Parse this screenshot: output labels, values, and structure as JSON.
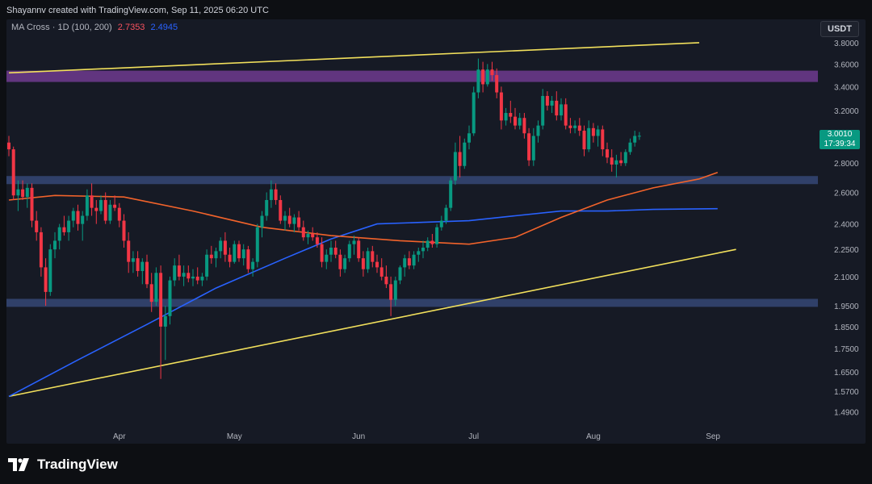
{
  "header": {
    "attribution": "Shayannv created with TradingView.com, Sep 11, 2025 06:20 UTC"
  },
  "indicator": {
    "label": "MA Cross · 1D (100, 200)",
    "ma100_value": "2.7353",
    "ma200_value": "2.4945"
  },
  "currency": "USDT",
  "last_price": {
    "value": "3.0010",
    "countdown": "17:39:34"
  },
  "brand": {
    "name": "TradingView"
  },
  "colors": {
    "background": "#161a25",
    "up": "#089981",
    "down": "#f23645",
    "ma100": "#f2632b",
    "ma200": "#2962ff",
    "trendline": "#f2e05c",
    "supply_zone": "#7b3f9e",
    "demand_zone": "#3a4d80"
  },
  "chart_data": {
    "type": "candlestick",
    "log_scale": true,
    "title": "",
    "xlabel": "",
    "ylabel": "",
    "ylim": [
      1.45,
      3.95
    ],
    "x_ticks": [
      "Apr",
      "May",
      "Jun",
      "Jul",
      "Aug",
      "Sep"
    ],
    "y_ticks": [
      "3.8000",
      "3.6000",
      "3.4000",
      "3.2000",
      "3.0000",
      "2.8000",
      "2.6000",
      "2.4000",
      "2.2500",
      "2.1000",
      "1.9500",
      "1.8500",
      "1.7500",
      "1.6500",
      "1.5700",
      "1.4900"
    ],
    "ohlc": [
      [
        2.95,
        3.0,
        2.85,
        2.9
      ],
      [
        2.9,
        2.92,
        2.55,
        2.58
      ],
      [
        2.58,
        2.68,
        2.48,
        2.62
      ],
      [
        2.62,
        2.68,
        2.55,
        2.57
      ],
      [
        2.57,
        2.66,
        2.5,
        2.63
      ],
      [
        2.63,
        2.66,
        2.38,
        2.42
      ],
      [
        2.42,
        2.48,
        2.3,
        2.35
      ],
      [
        2.35,
        2.38,
        2.1,
        2.15
      ],
      [
        2.15,
        2.2,
        1.95,
        2.02
      ],
      [
        2.02,
        2.28,
        2.0,
        2.25
      ],
      [
        2.25,
        2.35,
        2.2,
        2.3
      ],
      [
        2.3,
        2.4,
        2.25,
        2.38
      ],
      [
        2.38,
        2.45,
        2.33,
        2.35
      ],
      [
        2.35,
        2.45,
        2.3,
        2.42
      ],
      [
        2.42,
        2.5,
        2.38,
        2.48
      ],
      [
        2.48,
        2.52,
        2.36,
        2.4
      ],
      [
        2.4,
        2.48,
        2.3,
        2.45
      ],
      [
        2.45,
        2.62,
        2.42,
        2.58
      ],
      [
        2.58,
        2.66,
        2.45,
        2.5
      ],
      [
        2.5,
        2.55,
        2.4,
        2.48
      ],
      [
        2.48,
        2.58,
        2.46,
        2.55
      ],
      [
        2.55,
        2.6,
        2.4,
        2.42
      ],
      [
        2.42,
        2.55,
        2.4,
        2.52
      ],
      [
        2.52,
        2.58,
        2.48,
        2.5
      ],
      [
        2.5,
        2.53,
        2.38,
        2.42
      ],
      [
        2.42,
        2.46,
        2.26,
        2.3
      ],
      [
        2.3,
        2.35,
        2.12,
        2.18
      ],
      [
        2.18,
        2.24,
        2.12,
        2.2
      ],
      [
        2.2,
        2.24,
        2.1,
        2.13
      ],
      [
        2.13,
        2.2,
        2.06,
        2.18
      ],
      [
        2.18,
        2.22,
        2.04,
        2.06
      ],
      [
        2.06,
        2.12,
        1.92,
        1.97
      ],
      [
        1.97,
        2.15,
        1.95,
        2.12
      ],
      [
        2.12,
        2.16,
        1.62,
        1.85
      ],
      [
        1.85,
        1.95,
        1.7,
        1.9
      ],
      [
        1.9,
        2.1,
        1.86,
        2.08
      ],
      [
        2.08,
        2.2,
        2.05,
        2.16
      ],
      [
        2.16,
        2.22,
        2.08,
        2.1
      ],
      [
        2.1,
        2.16,
        2.05,
        2.12
      ],
      [
        2.12,
        2.16,
        2.07,
        2.09
      ],
      [
        2.09,
        2.14,
        2.05,
        2.1
      ],
      [
        2.1,
        2.15,
        2.06,
        2.08
      ],
      [
        2.08,
        2.12,
        2.05,
        2.1
      ],
      [
        2.1,
        2.25,
        2.08,
        2.22
      ],
      [
        2.22,
        2.27,
        2.17,
        2.2
      ],
      [
        2.2,
        2.26,
        2.15,
        2.24
      ],
      [
        2.24,
        2.32,
        2.2,
        2.3
      ],
      [
        2.3,
        2.35,
        2.18,
        2.22
      ],
      [
        2.22,
        2.26,
        2.15,
        2.18
      ],
      [
        2.18,
        2.3,
        2.17,
        2.28
      ],
      [
        2.28,
        2.3,
        2.18,
        2.2
      ],
      [
        2.2,
        2.28,
        2.16,
        2.25
      ],
      [
        2.25,
        2.27,
        2.12,
        2.14
      ],
      [
        2.14,
        2.2,
        2.1,
        2.18
      ],
      [
        2.18,
        2.4,
        2.15,
        2.38
      ],
      [
        2.38,
        2.48,
        2.32,
        2.45
      ],
      [
        2.45,
        2.6,
        2.42,
        2.55
      ],
      [
        2.55,
        2.68,
        2.5,
        2.62
      ],
      [
        2.62,
        2.66,
        2.52,
        2.55
      ],
      [
        2.55,
        2.58,
        2.4,
        2.42
      ],
      [
        2.42,
        2.48,
        2.36,
        2.45
      ],
      [
        2.45,
        2.5,
        2.38,
        2.4
      ],
      [
        2.4,
        2.46,
        2.35,
        2.44
      ],
      [
        2.44,
        2.48,
        2.36,
        2.38
      ],
      [
        2.38,
        2.42,
        2.3,
        2.32
      ],
      [
        2.32,
        2.36,
        2.28,
        2.34
      ],
      [
        2.34,
        2.38,
        2.3,
        2.32
      ],
      [
        2.32,
        2.35,
        2.26,
        2.28
      ],
      [
        2.28,
        2.32,
        2.15,
        2.18
      ],
      [
        2.18,
        2.25,
        2.14,
        2.22
      ],
      [
        2.22,
        2.3,
        2.18,
        2.26
      ],
      [
        2.26,
        2.3,
        2.2,
        2.22
      ],
      [
        2.22,
        2.25,
        2.1,
        2.14
      ],
      [
        2.14,
        2.22,
        2.12,
        2.2
      ],
      [
        2.2,
        2.3,
        2.18,
        2.28
      ],
      [
        2.28,
        2.33,
        2.22,
        2.3
      ],
      [
        2.3,
        2.32,
        2.18,
        2.2
      ],
      [
        2.2,
        2.24,
        2.1,
        2.14
      ],
      [
        2.14,
        2.26,
        2.12,
        2.24
      ],
      [
        2.24,
        2.27,
        2.15,
        2.18
      ],
      [
        2.18,
        2.22,
        2.12,
        2.15
      ],
      [
        2.15,
        2.2,
        2.08,
        2.1
      ],
      [
        2.1,
        2.16,
        2.04,
        2.06
      ],
      [
        2.06,
        2.1,
        1.9,
        1.98
      ],
      [
        1.98,
        2.1,
        1.95,
        2.08
      ],
      [
        2.08,
        2.16,
        2.06,
        2.15
      ],
      [
        2.15,
        2.22,
        2.1,
        2.2
      ],
      [
        2.2,
        2.24,
        2.14,
        2.16
      ],
      [
        2.16,
        2.24,
        2.14,
        2.22
      ],
      [
        2.22,
        2.26,
        2.18,
        2.24
      ],
      [
        2.24,
        2.3,
        2.2,
        2.26
      ],
      [
        2.26,
        2.32,
        2.24,
        2.3
      ],
      [
        2.3,
        2.34,
        2.26,
        2.28
      ],
      [
        2.28,
        2.4,
        2.26,
        2.38
      ],
      [
        2.38,
        2.45,
        2.36,
        2.42
      ],
      [
        2.42,
        2.52,
        2.4,
        2.5
      ],
      [
        2.5,
        2.7,
        2.48,
        2.68
      ],
      [
        2.68,
        2.95,
        2.65,
        2.88
      ],
      [
        2.88,
        3.0,
        2.7,
        2.78
      ],
      [
        2.78,
        2.98,
        2.76,
        2.95
      ],
      [
        2.95,
        3.08,
        2.9,
        3.02
      ],
      [
        3.02,
        3.4,
        3.0,
        3.35
      ],
      [
        3.35,
        3.65,
        3.3,
        3.55
      ],
      [
        3.55,
        3.62,
        3.35,
        3.42
      ],
      [
        3.42,
        3.6,
        3.4,
        3.55
      ],
      [
        3.55,
        3.62,
        3.45,
        3.5
      ],
      [
        3.5,
        3.56,
        3.3,
        3.35
      ],
      [
        3.35,
        3.4,
        3.05,
        3.12
      ],
      [
        3.12,
        3.22,
        3.08,
        3.18
      ],
      [
        3.18,
        3.28,
        3.1,
        3.15
      ],
      [
        3.15,
        3.22,
        3.05,
        3.08
      ],
      [
        3.08,
        3.18,
        3.05,
        3.14
      ],
      [
        3.14,
        3.18,
        2.98,
        3.02
      ],
      [
        3.02,
        3.06,
        2.78,
        2.82
      ],
      [
        2.82,
        3.06,
        2.78,
        3.0
      ],
      [
        3.0,
        3.12,
        2.95,
        3.08
      ],
      [
        3.08,
        3.38,
        3.05,
        3.32
      ],
      [
        3.32,
        3.36,
        3.2,
        3.24
      ],
      [
        3.24,
        3.32,
        3.18,
        3.28
      ],
      [
        3.28,
        3.36,
        3.12,
        3.16
      ],
      [
        3.16,
        3.3,
        3.12,
        3.25
      ],
      [
        3.25,
        3.3,
        3.05,
        3.08
      ],
      [
        3.08,
        3.14,
        3.02,
        3.06
      ],
      [
        3.06,
        3.12,
        3.02,
        3.08
      ],
      [
        3.08,
        3.14,
        3.0,
        3.04
      ],
      [
        3.04,
        3.08,
        2.85,
        2.9
      ],
      [
        2.9,
        3.12,
        2.88,
        3.06
      ],
      [
        3.06,
        3.1,
        2.95,
        3.0
      ],
      [
        3.0,
        3.08,
        2.92,
        3.05
      ],
      [
        3.05,
        3.08,
        2.85,
        2.9
      ],
      [
        2.9,
        2.95,
        2.8,
        2.84
      ],
      [
        2.84,
        2.9,
        2.74,
        2.79
      ],
      [
        2.79,
        2.86,
        2.7,
        2.82
      ],
      [
        2.82,
        2.88,
        2.78,
        2.8
      ],
      [
        2.8,
        2.9,
        2.78,
        2.88
      ],
      [
        2.88,
        2.98,
        2.86,
        2.95
      ],
      [
        2.95,
        3.04,
        2.92,
        3.0
      ],
      [
        3.0,
        3.03,
        2.97,
        3.001
      ]
    ],
    "ma100": [
      [
        0,
        2.55
      ],
      [
        10,
        2.58
      ],
      [
        25,
        2.57
      ],
      [
        40,
        2.48
      ],
      [
        55,
        2.38
      ],
      [
        70,
        2.33
      ],
      [
        85,
        2.3
      ],
      [
        100,
        2.28
      ],
      [
        110,
        2.32
      ],
      [
        120,
        2.44
      ],
      [
        130,
        2.55
      ],
      [
        140,
        2.63
      ],
      [
        150,
        2.69
      ],
      [
        154,
        2.7353
      ]
    ],
    "ma200": [
      [
        0,
        1.55
      ],
      [
        15,
        1.7
      ],
      [
        30,
        1.86
      ],
      [
        45,
        2.04
      ],
      [
        60,
        2.2
      ],
      [
        70,
        2.31
      ],
      [
        80,
        2.4
      ],
      [
        90,
        2.41
      ],
      [
        100,
        2.42
      ],
      [
        110,
        2.45
      ],
      [
        120,
        2.48
      ],
      [
        130,
        2.48
      ],
      [
        140,
        2.49
      ],
      [
        154,
        2.4945
      ]
    ],
    "zones": [
      {
        "name": "supply",
        "from": 3.44,
        "to": 3.54
      },
      {
        "name": "demand",
        "from": 2.655,
        "to": 2.71
      },
      {
        "name": "support",
        "from": 1.945,
        "to": 1.985
      }
    ],
    "trendlines": [
      {
        "name": "upper",
        "x1": 0,
        "y1": 3.52,
        "x2": 150,
        "y2": 3.8
      },
      {
        "name": "lower",
        "x1": 0,
        "y1": 1.55,
        "x2": 158,
        "y2": 2.25
      }
    ]
  }
}
